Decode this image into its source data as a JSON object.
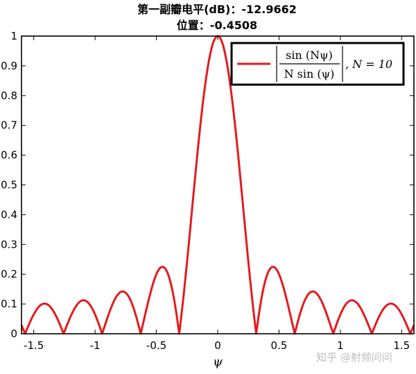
{
  "chart_data": {
    "type": "line",
    "title_line1": "第一副瓣电平(dB)：-12.9662",
    "title_line2": "位置：-0.4508",
    "xlabel": "ψ",
    "ylabel": "",
    "xlim": [
      -1.6,
      1.6
    ],
    "ylim": [
      0,
      1
    ],
    "xticks": [
      "-1.5",
      "-1",
      "-0.5",
      "0",
      "0.5",
      "1",
      "1.5"
    ],
    "yticks": [
      "0",
      "0.1",
      "0.2",
      "0.3",
      "0.4",
      "0.5",
      "0.6",
      "0.7",
      "0.8",
      "0.9",
      "1"
    ],
    "grid": false,
    "legend_position": "top-right",
    "series": [
      {
        "name": "|sin(Nψ) / (N sin(ψ))|, N = 10",
        "color": "#e41a1c",
        "N": 10,
        "x": [
          -1.6,
          -1.5,
          -1.41,
          -1.35,
          -1.257,
          -1.2,
          -1.1,
          -1.0,
          -0.942,
          -0.9,
          -0.77,
          -0.7,
          -0.628,
          -0.6,
          -0.5,
          -0.451,
          -0.4,
          -0.35,
          -0.314,
          -0.3,
          -0.2,
          -0.1,
          0,
          0.1,
          0.2,
          0.3,
          0.314,
          0.35,
          0.4,
          0.451,
          0.5,
          0.6,
          0.628,
          0.7,
          0.77,
          0.9,
          0.942,
          1.0,
          1.1,
          1.2,
          1.257,
          1.35,
          1.41,
          1.5,
          1.6
        ],
        "y": [
          0.029,
          0.066,
          0.101,
          0.079,
          0.0,
          0.058,
          0.112,
          0.063,
          0.0,
          0.057,
          0.143,
          0.102,
          0.0,
          0.047,
          0.2,
          0.224,
          0.186,
          0.099,
          0.0,
          0.048,
          0.459,
          0.818,
          1.0,
          0.818,
          0.459,
          0.048,
          0.0,
          0.099,
          0.186,
          0.224,
          0.2,
          0.047,
          0.0,
          0.102,
          0.143,
          0.057,
          0.0,
          0.063,
          0.112,
          0.058,
          0.0,
          0.079,
          0.101,
          0.066,
          0.029
        ]
      }
    ],
    "legend": {
      "label_num": "sin (Nψ)",
      "label_den": "N sin (ψ)",
      "label_suffix": ", N = 10"
    }
  },
  "watermark": "知乎 @射频问问"
}
